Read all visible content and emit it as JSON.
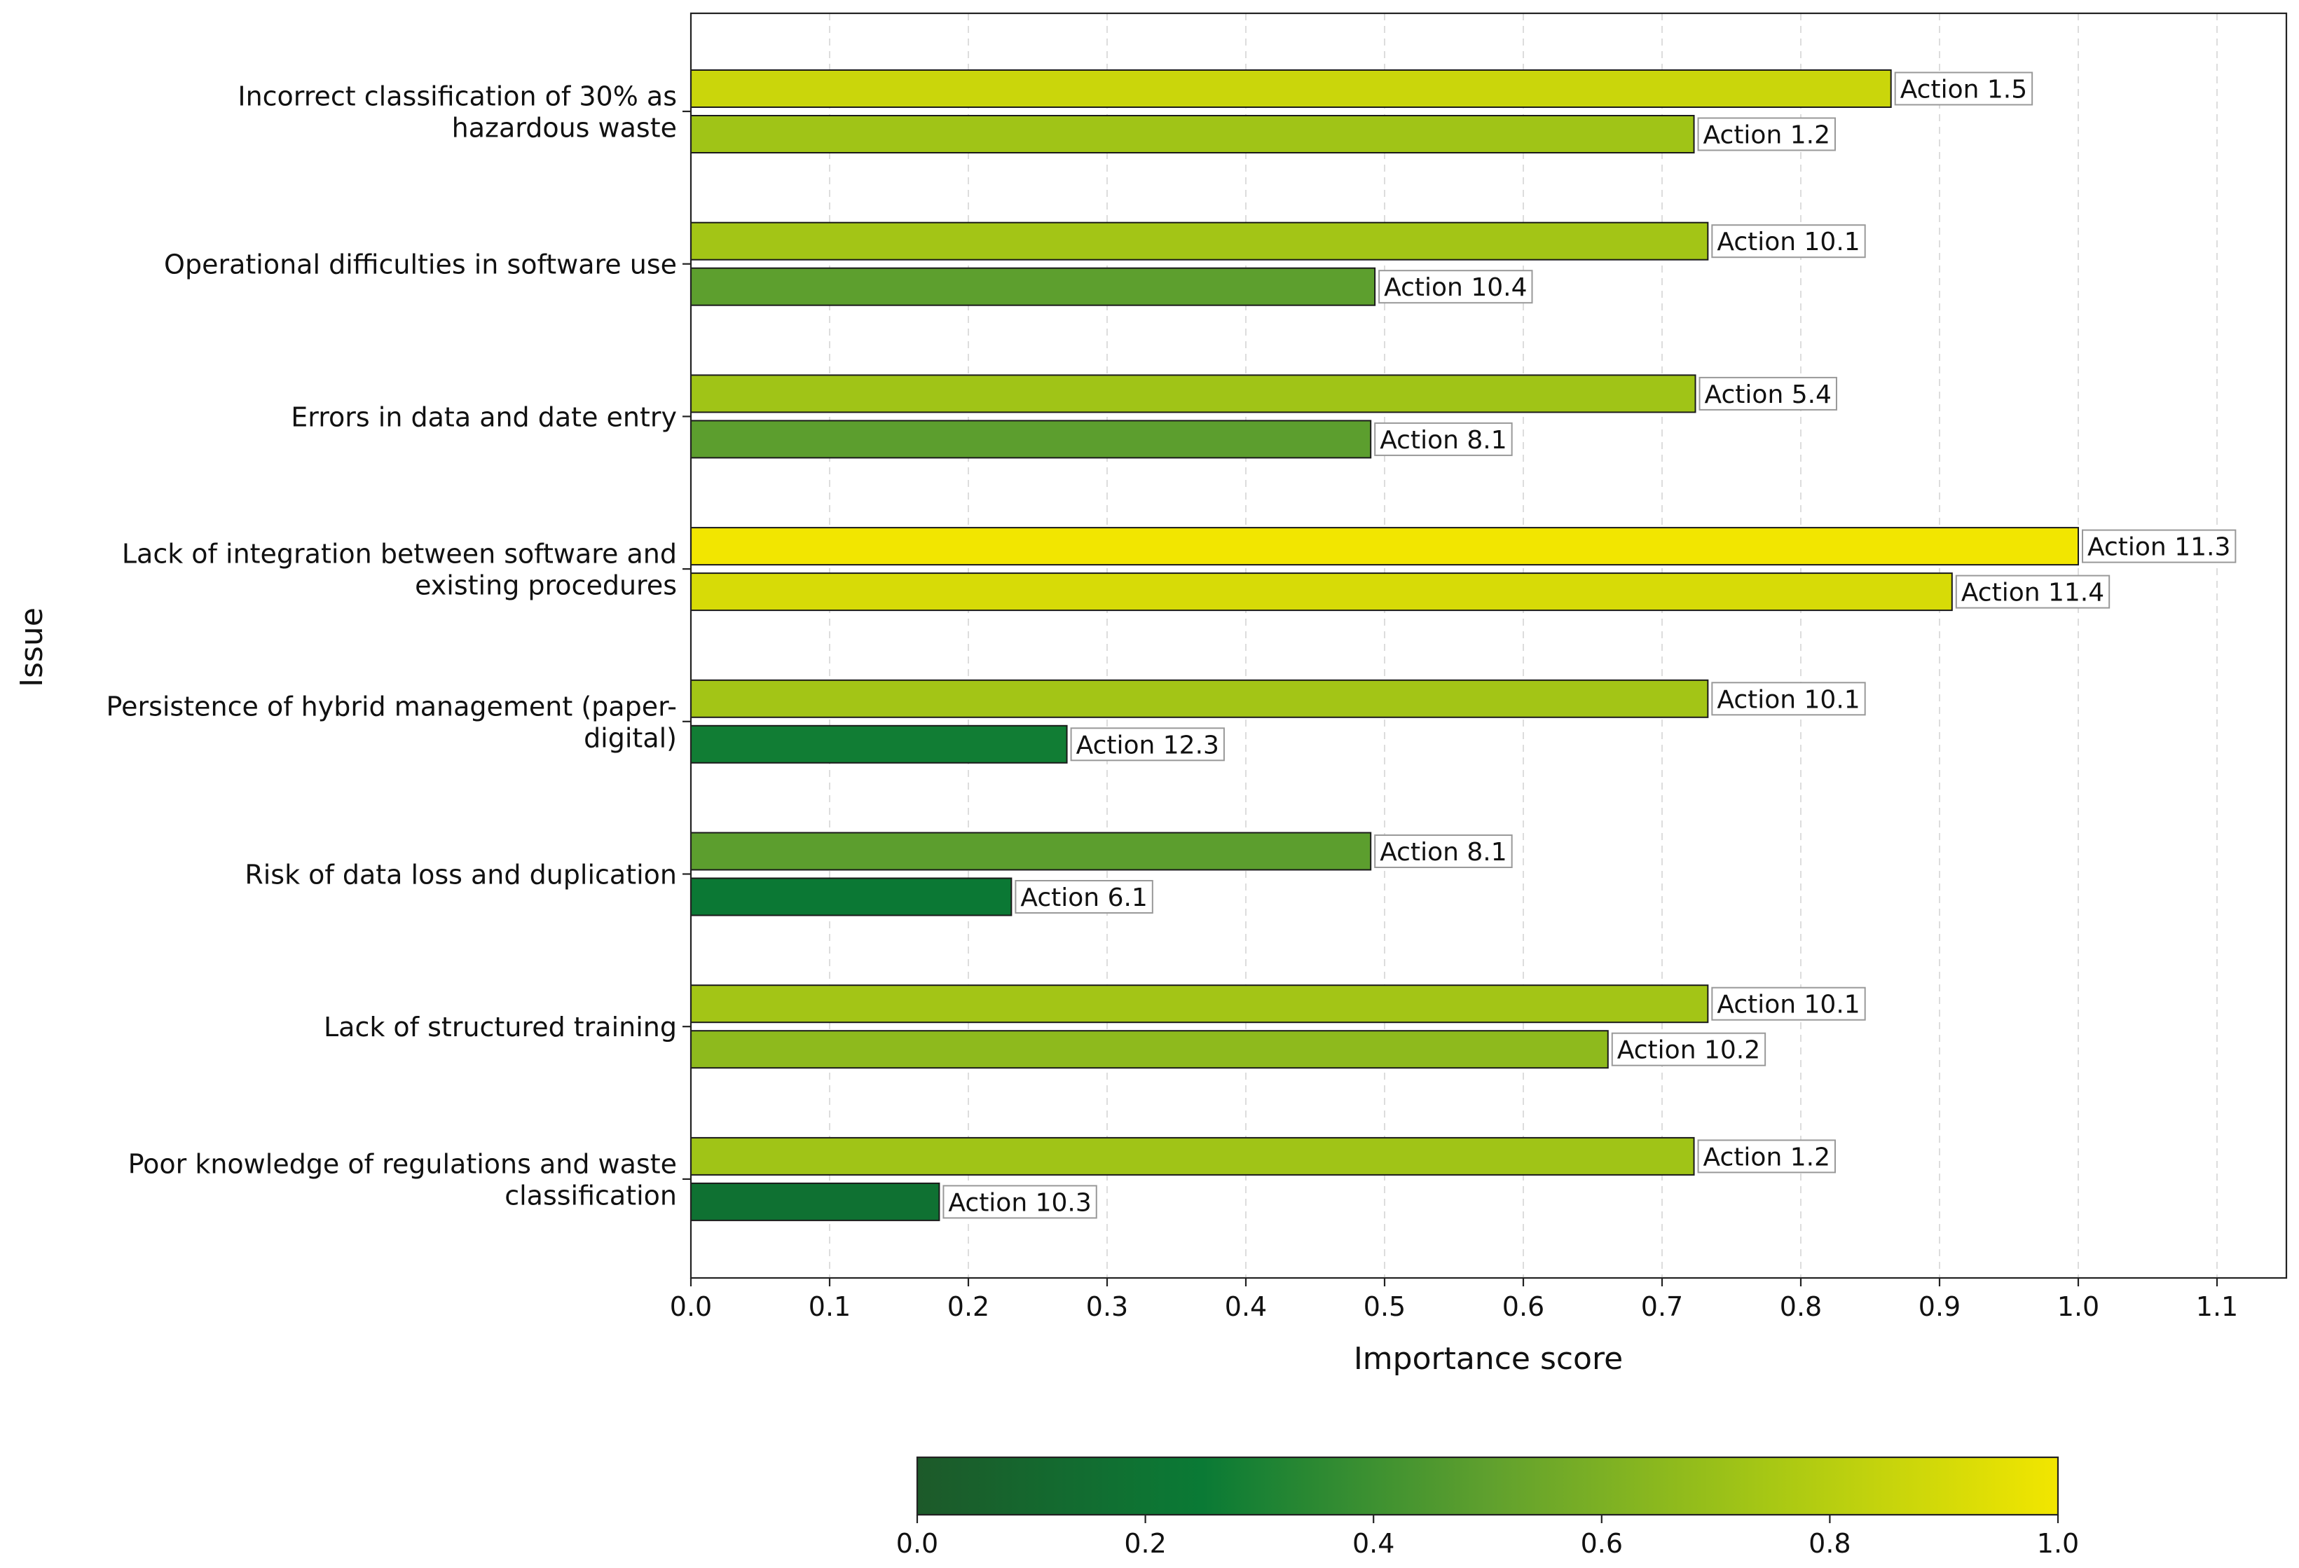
{
  "chart_data": {
    "type": "bar",
    "orientation": "horizontal",
    "xlabel": "Importance score",
    "ylabel": "Issue",
    "xlim": [
      0.0,
      1.15
    ],
    "xticks": [
      "0.0",
      "0.1",
      "0.2",
      "0.3",
      "0.4",
      "0.5",
      "0.6",
      "0.7",
      "0.8",
      "0.9",
      "1.0",
      "1.1"
    ],
    "grid": "vertical dashed",
    "bar_label_style": "boxed text at bar end",
    "colorbar": {
      "orientation": "horizontal",
      "range": [
        0.0,
        1.0
      ],
      "ticks": [
        "0.0",
        "0.2",
        "0.4",
        "0.6",
        "0.8",
        "1.0"
      ],
      "colors": [
        "#1d5a2a",
        "#0a7a35",
        "#5fa02e",
        "#a8c814",
        "#f2e600"
      ]
    },
    "issues": [
      {
        "label": "Incorrect classification of 30% as hazardous waste",
        "label_lines": [
          "Incorrect classification of 30% as",
          "hazardous waste"
        ],
        "bars": [
          {
            "action": "Action 1.5",
            "value": 0.865
          },
          {
            "action": "Action 1.2",
            "value": 0.723
          }
        ]
      },
      {
        "label": "Operational difficulties in software use",
        "label_lines": [
          "Operational difficulties in software use"
        ],
        "bars": [
          {
            "action": "Action 10.1",
            "value": 0.733
          },
          {
            "action": "Action 10.4",
            "value": 0.493
          }
        ]
      },
      {
        "label": "Errors in data and date entry",
        "label_lines": [
          "Errors in data and date entry"
        ],
        "bars": [
          {
            "action": "Action 5.4",
            "value": 0.724
          },
          {
            "action": "Action 8.1",
            "value": 0.49
          }
        ]
      },
      {
        "label": "Lack of integration between software and existing procedures",
        "label_lines": [
          "Lack of integration between software and",
          "existing procedures"
        ],
        "bars": [
          {
            "action": "Action 11.3",
            "value": 1.0
          },
          {
            "action": "Action 11.4",
            "value": 0.909
          }
        ]
      },
      {
        "label": "Persistence of hybrid management (paper-digital)",
        "label_lines": [
          "Persistence of hybrid management (paper-",
          "digital)"
        ],
        "bars": [
          {
            "action": "Action 10.1",
            "value": 0.733
          },
          {
            "action": "Action 12.3",
            "value": 0.271
          }
        ]
      },
      {
        "label": "Risk of data loss and duplication",
        "label_lines": [
          "Risk of data loss and duplication"
        ],
        "bars": [
          {
            "action": "Action 8.1",
            "value": 0.49
          },
          {
            "action": "Action 6.1",
            "value": 0.231
          }
        ]
      },
      {
        "label": "Lack of structured training",
        "label_lines": [
          "Lack of structured training"
        ],
        "bars": [
          {
            "action": "Action 10.1",
            "value": 0.733
          },
          {
            "action": "Action 10.2",
            "value": 0.661
          }
        ]
      },
      {
        "label": "Poor knowledge of regulations and waste classification",
        "label_lines": [
          "Poor knowledge of regulations and waste",
          "classification"
        ],
        "bars": [
          {
            "action": "Action 1.2",
            "value": 0.723
          },
          {
            "action": "Action 10.3",
            "value": 0.179
          }
        ]
      }
    ]
  }
}
